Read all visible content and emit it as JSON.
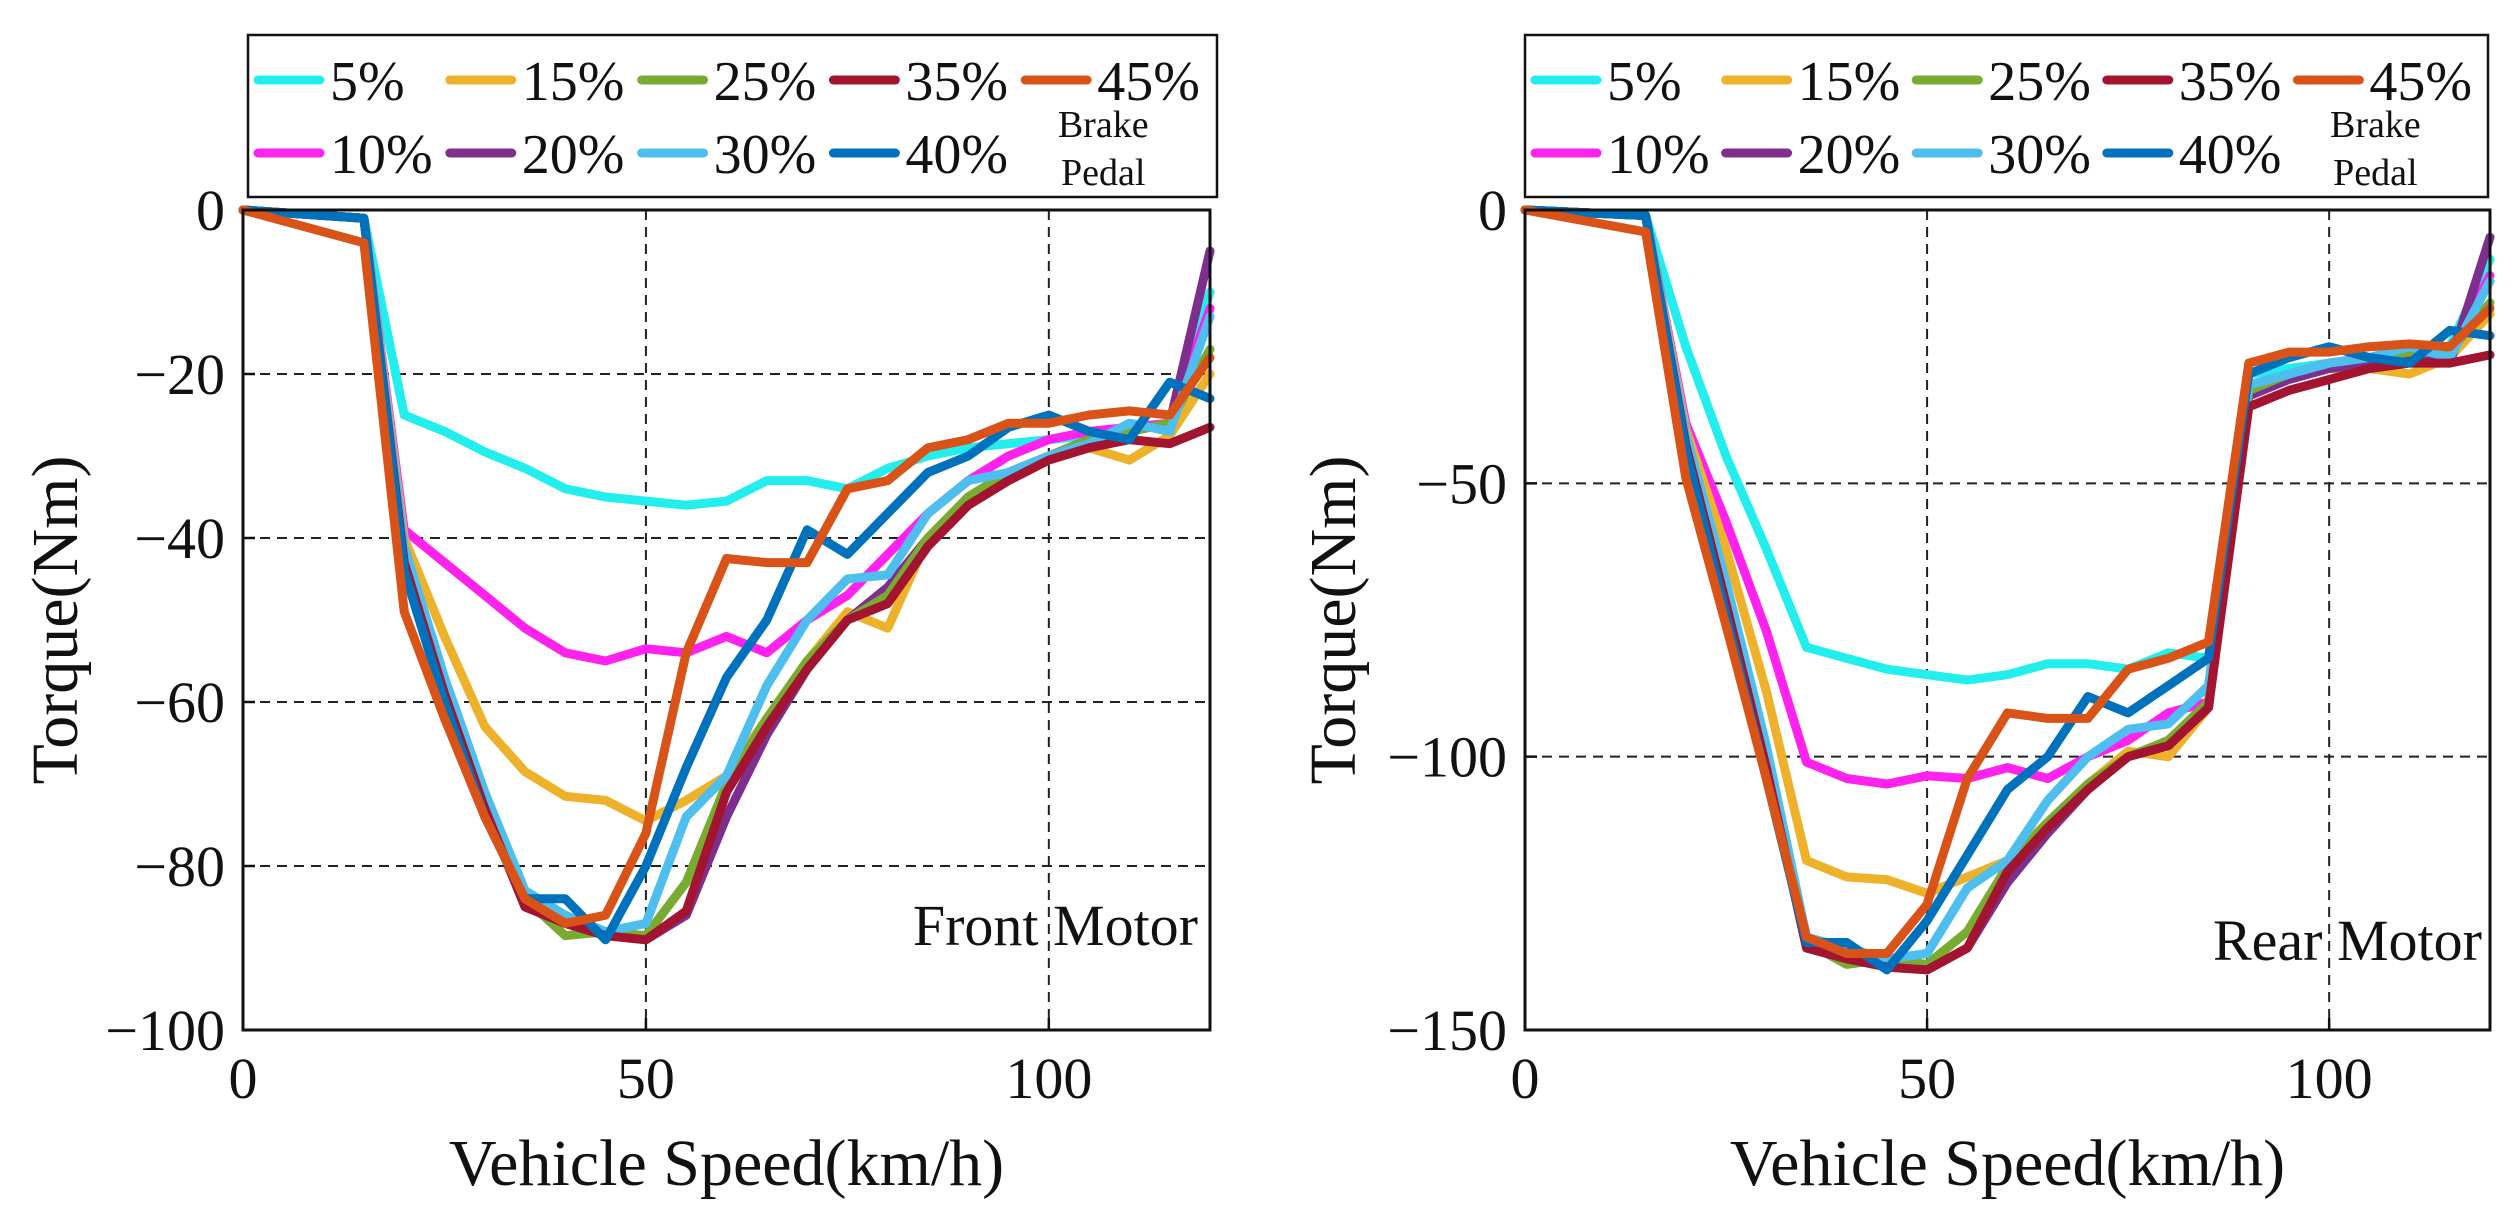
{
  "colors": {
    "5%": "#22eeee",
    "10%": "#ff22ee",
    "15%": "#eeb12a",
    "20%": "#7e2f8e",
    "25%": "#77ac30",
    "30%": "#4dbeee",
    "35%": "#a2142f",
    "40%": "#0072bd",
    "45%": "#d95319"
  },
  "legend": {
    "row1": [
      "5%",
      "15%",
      "25%",
      "35%",
      "45%"
    ],
    "row2": [
      "10%",
      "20%",
      "30%",
      "40%"
    ],
    "note_line1": "Brake",
    "note_line2": "Pedal"
  },
  "chart_data": [
    {
      "type": "line",
      "annotation": "Front Motor",
      "xlabel": "Vehicle Speed(km/h)",
      "ylabel": "Torque(Nm)",
      "xlim": [
        0,
        120
      ],
      "ylim": [
        -100,
        0
      ],
      "xticks": [
        0,
        50,
        100
      ],
      "xtick_labels": [
        "0",
        "50",
        "100"
      ],
      "yticks": [
        0,
        -20,
        -40,
        -60,
        -80,
        -100
      ],
      "ytick_labels": [
        "0",
        "−20",
        "−40",
        "−60",
        "−80",
        "−100"
      ],
      "grid": "dashed",
      "series": [
        {
          "name": "5%",
          "x": [
            0,
            15,
            20,
            25,
            30,
            35,
            40,
            45,
            50,
            55,
            60,
            65,
            70,
            75,
            80,
            85,
            90,
            95,
            100,
            105,
            110,
            115,
            120
          ],
          "y": [
            0,
            -1,
            -25,
            -27,
            -29.5,
            -31.5,
            -34,
            -35,
            -35.5,
            -36,
            -35.5,
            -33,
            -33,
            -34,
            -31.5,
            -30,
            -29,
            -28.5,
            -28,
            -27.5,
            -27,
            -26,
            -10
          ]
        },
        {
          "name": "10%",
          "x": [
            0,
            15,
            20,
            25,
            30,
            35,
            40,
            45,
            50,
            55,
            60,
            65,
            70,
            75,
            80,
            85,
            90,
            95,
            100,
            105,
            110,
            115,
            120
          ],
          "y": [
            0,
            -1,
            -39,
            -43,
            -47,
            -51,
            -54,
            -55,
            -53.5,
            -54,
            -52,
            -54,
            -50,
            -47,
            -42,
            -37,
            -33,
            -30,
            -28,
            -27,
            -26.5,
            -26,
            -12
          ]
        },
        {
          "name": "15%",
          "x": [
            0,
            15,
            20,
            25,
            30,
            35,
            40,
            45,
            50,
            55,
            60,
            65,
            70,
            75,
            80,
            85,
            90,
            95,
            100,
            105,
            110,
            115,
            120
          ],
          "y": [
            0,
            -1,
            -40,
            -52,
            -63,
            -68.5,
            -71.5,
            -72,
            -74.5,
            -72,
            -69,
            -62,
            -55,
            -49,
            -51,
            -40,
            -35,
            -32,
            -30,
            -29,
            -30.5,
            -27.5,
            -20
          ]
        },
        {
          "name": "20%",
          "x": [
            0,
            15,
            20,
            25,
            30,
            35,
            40,
            45,
            50,
            55,
            60,
            65,
            70,
            75,
            80,
            85,
            90,
            95,
            100,
            105,
            110,
            115,
            120
          ],
          "y": [
            0,
            -1,
            -42,
            -58,
            -72,
            -84,
            -87,
            -88,
            -89,
            -86,
            -74,
            -64,
            -56,
            -50,
            -46,
            -40,
            -35,
            -32,
            -30,
            -28,
            -27,
            -26,
            -5
          ]
        },
        {
          "name": "25%",
          "x": [
            0,
            15,
            20,
            25,
            30,
            35,
            40,
            45,
            50,
            55,
            60,
            65,
            70,
            75,
            80,
            85,
            90,
            95,
            100,
            105,
            110,
            115,
            120
          ],
          "y": [
            0,
            -1,
            -42,
            -58,
            -72,
            -84,
            -88.5,
            -88,
            -88.5,
            -82,
            -70,
            -62,
            -55,
            -50,
            -47,
            -40,
            -35,
            -32,
            -30,
            -28,
            -27,
            -26,
            -17
          ]
        },
        {
          "name": "30%",
          "x": [
            0,
            15,
            20,
            25,
            30,
            35,
            40,
            45,
            50,
            55,
            60,
            65,
            70,
            75,
            80,
            85,
            90,
            95,
            100,
            105,
            110,
            115,
            120
          ],
          "y": [
            0,
            -1,
            -41,
            -57,
            -71,
            -83,
            -86,
            -88,
            -87,
            -74,
            -69,
            -58,
            -50,
            -45,
            -44.5,
            -37,
            -33,
            -32,
            -30,
            -28.5,
            -26,
            -27,
            -13
          ]
        },
        {
          "name": "35%",
          "x": [
            0,
            15,
            20,
            25,
            30,
            35,
            40,
            45,
            50,
            55,
            60,
            65,
            70,
            75,
            80,
            85,
            90,
            95,
            100,
            105,
            110,
            115,
            120
          ],
          "y": [
            0,
            -1,
            -43,
            -59,
            -73,
            -85,
            -87,
            -88.5,
            -89,
            -85.5,
            -71,
            -63,
            -56,
            -50,
            -48,
            -41,
            -36,
            -33,
            -30.5,
            -29,
            -28,
            -28.5,
            -26.5
          ]
        },
        {
          "name": "40%",
          "x": [
            0,
            15,
            20,
            25,
            30,
            35,
            40,
            45,
            50,
            55,
            60,
            65,
            70,
            75,
            80,
            85,
            90,
            95,
            100,
            105,
            110,
            115,
            120
          ],
          "y": [
            0,
            -1,
            -44,
            -60,
            -74,
            -84,
            -84,
            -89,
            -80,
            -68,
            -57,
            -50,
            -39,
            -42,
            -37,
            -32,
            -30,
            -26.5,
            -25,
            -27,
            -28,
            -21,
            -23
          ]
        },
        {
          "name": "45%",
          "x": [
            0,
            15,
            20,
            25,
            30,
            35,
            40,
            45,
            50,
            55,
            60,
            65,
            70,
            75,
            80,
            85,
            90,
            95,
            100,
            105,
            110,
            115,
            120
          ],
          "y": [
            0,
            -4,
            -49,
            -62,
            -74,
            -84,
            -87,
            -86,
            -76,
            -54,
            -42.5,
            -43,
            -43,
            -34,
            -33,
            -29,
            -28,
            -26,
            -26,
            -25,
            -24.5,
            -25,
            -18
          ]
        }
      ]
    },
    {
      "type": "line",
      "annotation": "Rear Motor",
      "xlabel": "Vehicle Speed(km/h)",
      "ylabel": "Torque(Nm)",
      "xlim": [
        0,
        120
      ],
      "ylim": [
        -150,
        0
      ],
      "xticks": [
        0,
        50,
        100
      ],
      "xtick_labels": [
        "0",
        "50",
        "100"
      ],
      "yticks": [
        0,
        -50,
        -100,
        -150
      ],
      "ytick_labels": [
        "0",
        "−50",
        "−100",
        "−150"
      ],
      "grid": "dashed",
      "series": [
        {
          "name": "5%",
          "x": [
            0,
            15,
            20,
            25,
            30,
            35,
            40,
            45,
            50,
            55,
            60,
            65,
            70,
            75,
            80,
            85,
            90,
            95,
            100,
            105,
            110,
            115,
            120
          ],
          "y": [
            0,
            -1,
            -25,
            -45,
            -62,
            -80,
            -82,
            -84,
            -85,
            -86,
            -85,
            -83,
            -83,
            -84,
            -81,
            -82,
            -30,
            -29,
            -28,
            -27,
            -27,
            -25,
            -9
          ]
        },
        {
          "name": "10%",
          "x": [
            0,
            15,
            20,
            25,
            30,
            35,
            40,
            45,
            50,
            55,
            60,
            65,
            70,
            75,
            80,
            85,
            90,
            95,
            100,
            105,
            110,
            115,
            120
          ],
          "y": [
            0,
            -1,
            -39,
            -57,
            -77,
            -101,
            -104,
            -105,
            -103.5,
            -104,
            -102,
            -104,
            -100,
            -97,
            -92,
            -90,
            -33,
            -30,
            -28,
            -27,
            -26,
            -26,
            -12
          ]
        },
        {
          "name": "15%",
          "x": [
            0,
            15,
            20,
            25,
            30,
            35,
            40,
            45,
            50,
            55,
            60,
            65,
            70,
            75,
            80,
            85,
            90,
            95,
            100,
            105,
            110,
            115,
            120
          ],
          "y": [
            0,
            -1,
            -40,
            -62,
            -88,
            -119,
            -122,
            -122.5,
            -125,
            -122,
            -119,
            -112,
            -105,
            -99,
            -100,
            -91,
            -33,
            -30,
            -29,
            -29,
            -30,
            -27,
            -19
          ]
        },
        {
          "name": "20%",
          "x": [
            0,
            15,
            20,
            25,
            30,
            35,
            40,
            45,
            50,
            55,
            60,
            65,
            70,
            75,
            80,
            85,
            90,
            95,
            100,
            105,
            110,
            115,
            120
          ],
          "y": [
            0,
            -1,
            -42,
            -70,
            -100,
            -134,
            -136,
            -138,
            -139,
            -135,
            -123,
            -114,
            -106,
            -100,
            -98,
            -91,
            -34,
            -31,
            -29,
            -28,
            -27,
            -28,
            -5
          ]
        },
        {
          "name": "25%",
          "x": [
            0,
            15,
            20,
            25,
            30,
            35,
            40,
            45,
            50,
            55,
            60,
            65,
            70,
            75,
            80,
            85,
            90,
            95,
            100,
            105,
            110,
            115,
            120
          ],
          "y": [
            0,
            -1,
            -42,
            -70,
            -100,
            -134,
            -138,
            -137,
            -138,
            -132,
            -120,
            -112,
            -105,
            -100,
            -97,
            -90,
            -33,
            -30,
            -28,
            -27,
            -26,
            -26,
            -17
          ]
        },
        {
          "name": "30%",
          "x": [
            0,
            15,
            20,
            25,
            30,
            35,
            40,
            45,
            50,
            55,
            60,
            65,
            70,
            75,
            80,
            85,
            90,
            95,
            100,
            105,
            110,
            115,
            120
          ],
          "y": [
            0,
            -1,
            -41,
            -68,
            -98,
            -133,
            -135,
            -137,
            -136,
            -124,
            -119,
            -108,
            -100,
            -95,
            -94,
            -87,
            -32,
            -30,
            -28,
            -27,
            -25,
            -27,
            -13
          ]
        },
        {
          "name": "35%",
          "x": [
            0,
            15,
            20,
            25,
            30,
            35,
            40,
            45,
            50,
            55,
            60,
            65,
            70,
            75,
            80,
            85,
            90,
            95,
            100,
            105,
            110,
            115,
            120
          ],
          "y": [
            0,
            -1,
            -43,
            -72,
            -102,
            -135,
            -137,
            -138.5,
            -139,
            -135,
            -121,
            -113,
            -106,
            -100,
            -98,
            -91,
            -36,
            -33,
            -31,
            -29,
            -28,
            -28,
            -26.5
          ]
        },
        {
          "name": "40%",
          "x": [
            0,
            15,
            20,
            25,
            30,
            35,
            40,
            45,
            50,
            55,
            60,
            65,
            70,
            75,
            80,
            85,
            90,
            95,
            100,
            105,
            110,
            115,
            120
          ],
          "y": [
            0,
            -1,
            -44,
            -74,
            -104,
            -134,
            -134,
            -139,
            -130,
            -118,
            -106,
            -100,
            -89,
            -92,
            -87,
            -82,
            -30,
            -27,
            -25,
            -27,
            -28,
            -22,
            -23
          ]
        },
        {
          "name": "45%",
          "x": [
            0,
            15,
            20,
            25,
            30,
            35,
            40,
            45,
            50,
            55,
            60,
            65,
            70,
            75,
            80,
            85,
            90,
            95,
            100,
            105,
            110,
            115,
            120
          ],
          "y": [
            0,
            -4,
            -49,
            -76,
            -104,
            -133,
            -136,
            -136,
            -127,
            -104,
            -92,
            -93,
            -93,
            -84,
            -82,
            -79,
            -28,
            -26,
            -26,
            -25,
            -24.5,
            -25,
            -18
          ]
        }
      ]
    }
  ]
}
